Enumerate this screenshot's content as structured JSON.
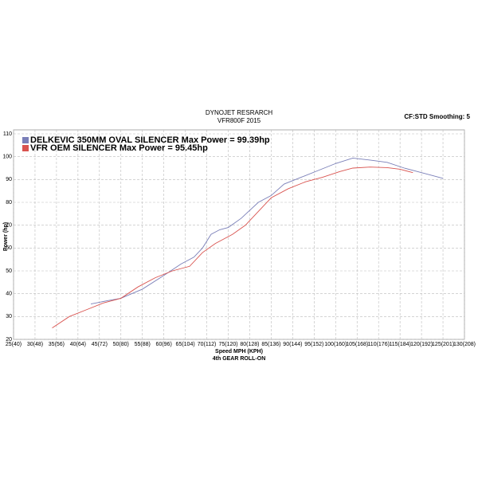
{
  "chart_data": {
    "type": "line",
    "title": "DYNOJET RESRARCH",
    "subtitle": "VFR800F 2015",
    "annotation": "CF:STD Smoothing: 5",
    "y_label": "Power (hp)",
    "x_label": "Speed MPH (KPH)",
    "x_sublabel": "4th GEAR ROLL-ON",
    "xlim": [
      25,
      130
    ],
    "ylim": [
      20,
      110
    ],
    "xticks": [
      {
        "value": 25,
        "label": "25(40)"
      },
      {
        "value": 30,
        "label": "30(48)"
      },
      {
        "value": 35,
        "label": "35(56)"
      },
      {
        "value": 40,
        "label": "40(64)"
      },
      {
        "value": 45,
        "label": "45(72)"
      },
      {
        "value": 50,
        "label": "50(80)"
      },
      {
        "value": 55,
        "label": "55(88)"
      },
      {
        "value": 60,
        "label": "60(96)"
      },
      {
        "value": 65,
        "label": "65(104)"
      },
      {
        "value": 70,
        "label": "70(112)"
      },
      {
        "value": 75,
        "label": "75(120)"
      },
      {
        "value": 80,
        "label": "80(128)"
      },
      {
        "value": 85,
        "label": "85(136)"
      },
      {
        "value": 90,
        "label": "90(144)"
      },
      {
        "value": 95,
        "label": "95(152)"
      },
      {
        "value": 100,
        "label": "100(160)"
      },
      {
        "value": 105,
        "label": "105(168)"
      },
      {
        "value": 110,
        "label": "110(176)"
      },
      {
        "value": 115,
        "label": "115(184)"
      },
      {
        "value": 120,
        "label": "120(192)"
      },
      {
        "value": 125,
        "label": "125(201)"
      },
      {
        "value": 130,
        "label": "130(208)"
      }
    ],
    "yticks": [
      20,
      30,
      40,
      50,
      60,
      70,
      80,
      90,
      100,
      110
    ],
    "grid": true,
    "series": [
      {
        "name": "DELKEVIC 350MM OVAL SILENCER  Max Power = 99.39hp",
        "color": "#7a7fb8",
        "x": [
          43,
          47,
          50,
          55,
          60,
          64,
          67,
          69,
          71,
          73,
          75,
          78,
          82,
          85,
          88,
          92,
          96,
          100,
          104,
          108,
          112,
          116,
          120,
          124,
          125
        ],
        "values": [
          35.5,
          37,
          38,
          42,
          48,
          53,
          56,
          60,
          66,
          68,
          69,
          73,
          80,
          83,
          88,
          91,
          94,
          97,
          99.39,
          98.5,
          97.5,
          95,
          93,
          91,
          90.5
        ]
      },
      {
        "name": "VFR OEM SILENCER Max Power = 95.45hp",
        "color": "#d9534f",
        "x": [
          34,
          38,
          42,
          46,
          50,
          54,
          58,
          62,
          66,
          69,
          72,
          76,
          79,
          82,
          85,
          89,
          93,
          97,
          101,
          104,
          108,
          112,
          115,
          118
        ],
        "values": [
          25,
          30,
          33,
          36,
          38,
          43,
          47,
          50,
          52,
          58,
          62,
          66,
          70,
          76,
          82,
          86,
          89,
          91,
          93.5,
          95,
          95.45,
          95.2,
          94.5,
          93
        ]
      }
    ]
  }
}
